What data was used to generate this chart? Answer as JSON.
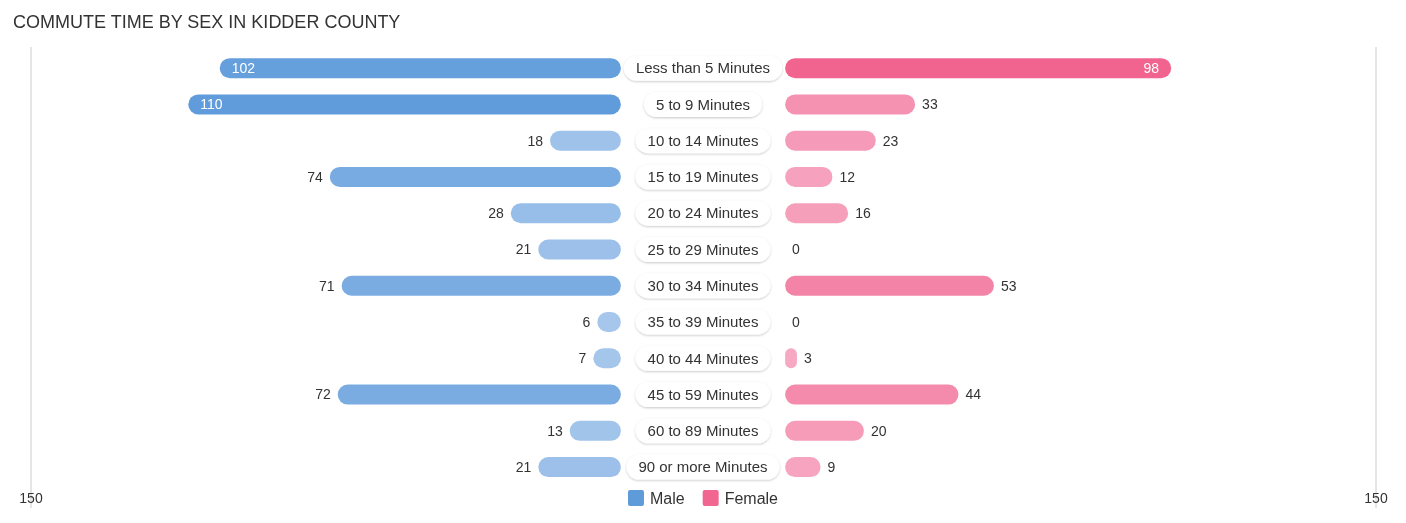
{
  "chart_data": [
    {
      "type": "bar",
      "orientation": "horizontal",
      "title": "COMMUTE TIME BY SEX IN KIDDER COUNTY",
      "categories": [
        "Less than 5 Minutes",
        "5 to 9 Minutes",
        "10 to 14 Minutes",
        "15 to 19 Minutes",
        "20 to 24 Minutes",
        "25 to 29 Minutes",
        "30 to 34 Minutes",
        "35 to 39 Minutes",
        "40 to 44 Minutes",
        "45 to 59 Minutes",
        "60 to 89 Minutes",
        "90 or more Minutes"
      ],
      "series": [
        {
          "name": "Male",
          "color": "#5f9ad9",
          "colors": [
            "#659fdc",
            "#609cdb",
            "#9ec2e9",
            "#78abe1",
            "#97bee8",
            "#9cc0e9",
            "#7aace1",
            "#a6c7eb",
            "#a5c6eb",
            "#7aace1",
            "#a1c4ea",
            "#9cc0e9"
          ],
          "values": [
            102,
            110,
            18,
            74,
            28,
            21,
            71,
            6,
            7,
            72,
            13,
            21
          ]
        }
      ],
      "xlim": [
        150,
        0
      ],
      "xticks": [
        150
      ],
      "legend": "bottom",
      "data_labels": true
    },
    {
      "type": "bar",
      "orientation": "horizontal",
      "categories": [
        "Less than 5 Minutes",
        "5 to 9 Minutes",
        "10 to 14 Minutes",
        "15 to 19 Minutes",
        "20 to 24 Minutes",
        "25 to 29 Minutes",
        "30 to 34 Minutes",
        "35 to 39 Minutes",
        "40 to 44 Minutes",
        "45 to 59 Minutes",
        "60 to 89 Minutes",
        "90 or more Minutes"
      ],
      "series": [
        {
          "name": "Female",
          "color": "#f06690",
          "colors": [
            "#f0648f",
            "#f592b2",
            "#f59ab8",
            "#f6a1be",
            "#f69fbb",
            "#f7aac4",
            "#f384a7",
            "#f7aac4",
            "#f7a8c2",
            "#f48bac",
            "#f69cb9",
            "#f6a4c0"
          ],
          "values": [
            98,
            33,
            23,
            12,
            16,
            0,
            53,
            0,
            3,
            44,
            20,
            9
          ]
        }
      ],
      "xlim": [
        0,
        150
      ],
      "xticks": [
        150
      ],
      "legend": "bottom",
      "data_labels": true,
      "tick_labels": "x"
    }
  ]
}
